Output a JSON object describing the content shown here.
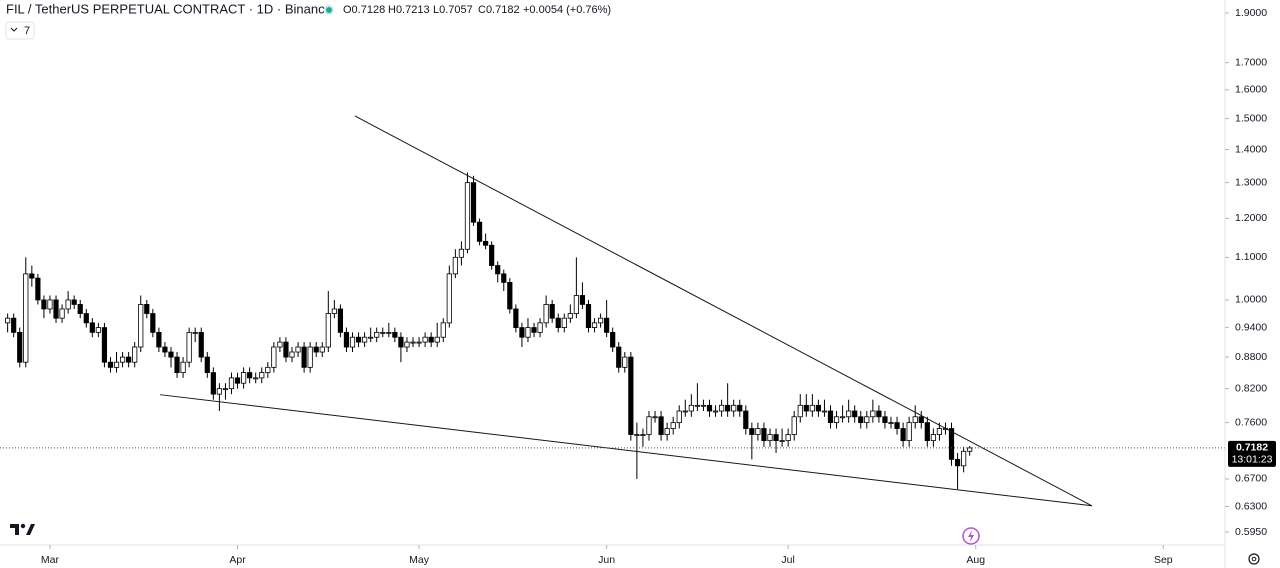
{
  "chart_data": {
    "type": "candlestick",
    "title": "FIL / TetherUS PERPETUAL CONTRACT · 1D · Binance",
    "header_values": [
      "O0.7128",
      "H0.7213",
      "L0.7057",
      "C0.7182",
      "+0.0054 (+0.76%)"
    ],
    "indicator_count": "7",
    "countdown": "13:01:23",
    "last_price": {
      "value": 0.7182,
      "label": "0.7182"
    },
    "log_scale": true,
    "grid": false,
    "up_color": "#ffffff",
    "down_color": "#000000",
    "wick_color": "#000000",
    "xlim": [
      -1.26,
      201.2
    ],
    "xticks": [
      {
        "value": 7,
        "label": "Mar"
      },
      {
        "value": 38,
        "label": "Apr"
      },
      {
        "value": 68,
        "label": "May"
      },
      {
        "value": 99,
        "label": "Jun"
      },
      {
        "value": 129,
        "label": "Jul"
      },
      {
        "value": 160,
        "label": "Aug"
      },
      {
        "value": 191,
        "label": "Sep"
      }
    ],
    "ylim": [
      0.578,
      1.956
    ],
    "yticks": [
      {
        "value": 1.9,
        "label": "1.9000"
      },
      {
        "value": 1.7,
        "label": "1.7000"
      },
      {
        "value": 1.6,
        "label": "1.6000"
      },
      {
        "value": 1.5,
        "label": "1.5000"
      },
      {
        "value": 1.4,
        "label": "1.4000"
      },
      {
        "value": 1.3,
        "label": "1.3000"
      },
      {
        "value": 1.2,
        "label": "1.2000"
      },
      {
        "value": 1.1,
        "label": "1.1000"
      },
      {
        "value": 1.0,
        "label": "1.0000"
      },
      {
        "value": 0.94,
        "label": "0.9400"
      },
      {
        "value": 0.88,
        "label": "0.8800"
      },
      {
        "value": 0.82,
        "label": "0.8200"
      },
      {
        "value": 0.76,
        "label": "0.7600"
      },
      {
        "value": 0.67,
        "label": "0.6700"
      },
      {
        "value": 0.63,
        "label": "0.6300"
      },
      {
        "value": 0.595,
        "label": "0.5950"
      }
    ],
    "trendlines": [
      {
        "x": [
          57.4,
          179.2
        ],
        "y": [
          1.509,
          0.631
        ]
      },
      {
        "x": [
          25.2,
          179.2
        ],
        "y": [
          0.809,
          0.631
        ]
      }
    ],
    "ohlc": [
      [
        0.95,
        0.97,
        0.93,
        0.96
      ],
      [
        0.96,
        0.97,
        0.92,
        0.93
      ],
      [
        0.93,
        0.94,
        0.86,
        0.87
      ],
      [
        0.87,
        1.1,
        0.86,
        1.06
      ],
      [
        1.06,
        1.08,
        1.03,
        1.05
      ],
      [
        1.05,
        1.06,
        0.99,
        1.0
      ],
      [
        1.0,
        1.01,
        0.96,
        0.98
      ],
      [
        0.98,
        1.01,
        0.97,
        1.0
      ],
      [
        1.0,
        1.01,
        0.95,
        0.96
      ],
      [
        0.96,
        0.99,
        0.95,
        0.98
      ],
      [
        0.98,
        1.02,
        0.97,
        1.0
      ],
      [
        1.0,
        1.01,
        0.98,
        0.99
      ],
      [
        0.99,
        1.0,
        0.96,
        0.97
      ],
      [
        0.97,
        0.98,
        0.94,
        0.95
      ],
      [
        0.95,
        0.96,
        0.92,
        0.93
      ],
      [
        0.93,
        0.95,
        0.92,
        0.94
      ],
      [
        0.94,
        0.95,
        0.86,
        0.87
      ],
      [
        0.87,
        0.88,
        0.85,
        0.86
      ],
      [
        0.86,
        0.89,
        0.85,
        0.87
      ],
      [
        0.87,
        0.89,
        0.86,
        0.88
      ],
      [
        0.88,
        0.89,
        0.86,
        0.87
      ],
      [
        0.87,
        0.91,
        0.86,
        0.9
      ],
      [
        0.9,
        1.01,
        0.89,
        0.99
      ],
      [
        0.99,
        1.0,
        0.96,
        0.97
      ],
      [
        0.97,
        0.98,
        0.92,
        0.93
      ],
      [
        0.93,
        0.94,
        0.89,
        0.9
      ],
      [
        0.9,
        0.91,
        0.88,
        0.89
      ],
      [
        0.89,
        0.9,
        0.86,
        0.88
      ],
      [
        0.88,
        0.89,
        0.84,
        0.85
      ],
      [
        0.85,
        0.88,
        0.84,
        0.87
      ],
      [
        0.87,
        0.94,
        0.86,
        0.93
      ],
      [
        0.93,
        0.94,
        0.91,
        0.93
      ],
      [
        0.93,
        0.94,
        0.87,
        0.88
      ],
      [
        0.88,
        0.89,
        0.84,
        0.85
      ],
      [
        0.85,
        0.86,
        0.8,
        0.81
      ],
      [
        0.81,
        0.83,
        0.78,
        0.82
      ],
      [
        0.82,
        0.83,
        0.8,
        0.82
      ],
      [
        0.82,
        0.85,
        0.81,
        0.84
      ],
      [
        0.84,
        0.85,
        0.82,
        0.83
      ],
      [
        0.83,
        0.86,
        0.82,
        0.85
      ],
      [
        0.85,
        0.86,
        0.83,
        0.84
      ],
      [
        0.84,
        0.85,
        0.83,
        0.84
      ],
      [
        0.84,
        0.86,
        0.83,
        0.85
      ],
      [
        0.85,
        0.87,
        0.84,
        0.86
      ],
      [
        0.86,
        0.91,
        0.85,
        0.9
      ],
      [
        0.9,
        0.92,
        0.89,
        0.91
      ],
      [
        0.91,
        0.92,
        0.87,
        0.88
      ],
      [
        0.88,
        0.9,
        0.87,
        0.89
      ],
      [
        0.89,
        0.91,
        0.88,
        0.9
      ],
      [
        0.9,
        0.91,
        0.85,
        0.86
      ],
      [
        0.86,
        0.91,
        0.85,
        0.9
      ],
      [
        0.9,
        0.91,
        0.88,
        0.89
      ],
      [
        0.89,
        0.91,
        0.88,
        0.9
      ],
      [
        0.9,
        1.02,
        0.89,
        0.97
      ],
      [
        0.97,
        1.0,
        0.96,
        0.98
      ],
      [
        0.98,
        0.99,
        0.92,
        0.93
      ],
      [
        0.93,
        0.94,
        0.89,
        0.9
      ],
      [
        0.9,
        0.93,
        0.89,
        0.92
      ],
      [
        0.92,
        0.93,
        0.9,
        0.91
      ],
      [
        0.91,
        0.93,
        0.9,
        0.92
      ],
      [
        0.92,
        0.94,
        0.91,
        0.92
      ],
      [
        0.92,
        0.94,
        0.91,
        0.93
      ],
      [
        0.93,
        0.94,
        0.92,
        0.93
      ],
      [
        0.93,
        0.95,
        0.92,
        0.93
      ],
      [
        0.93,
        0.94,
        0.91,
        0.92
      ],
      [
        0.92,
        0.93,
        0.87,
        0.9
      ],
      [
        0.9,
        0.92,
        0.89,
        0.91
      ],
      [
        0.91,
        0.92,
        0.9,
        0.91
      ],
      [
        0.91,
        0.92,
        0.9,
        0.91
      ],
      [
        0.91,
        0.93,
        0.9,
        0.92
      ],
      [
        0.92,
        0.93,
        0.9,
        0.91
      ],
      [
        0.91,
        0.95,
        0.9,
        0.92
      ],
      [
        0.92,
        0.96,
        0.91,
        0.95
      ],
      [
        0.95,
        1.08,
        0.94,
        1.06
      ],
      [
        1.06,
        1.12,
        1.05,
        1.1
      ],
      [
        1.1,
        1.14,
        1.08,
        1.12
      ],
      [
        1.12,
        1.33,
        1.11,
        1.3
      ],
      [
        1.3,
        1.32,
        1.18,
        1.19
      ],
      [
        1.19,
        1.2,
        1.13,
        1.14
      ],
      [
        1.14,
        1.16,
        1.12,
        1.13
      ],
      [
        1.13,
        1.14,
        1.07,
        1.08
      ],
      [
        1.08,
        1.09,
        1.04,
        1.06
      ],
      [
        1.06,
        1.07,
        1.02,
        1.04
      ],
      [
        1.04,
        1.05,
        0.97,
        0.98
      ],
      [
        0.98,
        0.99,
        0.93,
        0.94
      ],
      [
        0.94,
        0.95,
        0.9,
        0.92
      ],
      [
        0.92,
        0.96,
        0.91,
        0.94
      ],
      [
        0.94,
        0.95,
        0.92,
        0.93
      ],
      [
        0.93,
        0.96,
        0.92,
        0.95
      ],
      [
        0.95,
        1.01,
        0.94,
        0.99
      ],
      [
        0.99,
        1.0,
        0.95,
        0.96
      ],
      [
        0.96,
        0.97,
        0.93,
        0.94
      ],
      [
        0.94,
        0.97,
        0.93,
        0.96
      ],
      [
        0.96,
        0.99,
        0.95,
        0.97
      ],
      [
        0.97,
        1.1,
        0.96,
        1.01
      ],
      [
        1.01,
        1.04,
        0.98,
        0.99
      ],
      [
        0.99,
        1.0,
        0.93,
        0.94
      ],
      [
        0.94,
        0.96,
        0.93,
        0.95
      ],
      [
        0.95,
        0.97,
        0.94,
        0.96
      ],
      [
        0.96,
        1.0,
        0.92,
        0.93
      ],
      [
        0.93,
        0.94,
        0.89,
        0.9
      ],
      [
        0.9,
        0.91,
        0.85,
        0.86
      ],
      [
        0.86,
        0.89,
        0.85,
        0.88
      ],
      [
        0.88,
        0.89,
        0.73,
        0.74
      ],
      [
        0.74,
        0.76,
        0.67,
        0.74
      ],
      [
        0.74,
        0.75,
        0.72,
        0.74
      ],
      [
        0.74,
        0.78,
        0.73,
        0.77
      ],
      [
        0.77,
        0.78,
        0.76,
        0.77
      ],
      [
        0.77,
        0.78,
        0.73,
        0.74
      ],
      [
        0.74,
        0.76,
        0.73,
        0.75
      ],
      [
        0.75,
        0.77,
        0.74,
        0.76
      ],
      [
        0.76,
        0.79,
        0.75,
        0.78
      ],
      [
        0.78,
        0.8,
        0.77,
        0.78
      ],
      [
        0.78,
        0.81,
        0.77,
        0.79
      ],
      [
        0.79,
        0.83,
        0.78,
        0.79
      ],
      [
        0.79,
        0.8,
        0.78,
        0.79
      ],
      [
        0.79,
        0.8,
        0.77,
        0.78
      ],
      [
        0.78,
        0.79,
        0.77,
        0.78
      ],
      [
        0.78,
        0.8,
        0.77,
        0.79
      ],
      [
        0.79,
        0.83,
        0.77,
        0.78
      ],
      [
        0.78,
        0.8,
        0.77,
        0.79
      ],
      [
        0.79,
        0.8,
        0.77,
        0.78
      ],
      [
        0.78,
        0.79,
        0.74,
        0.75
      ],
      [
        0.75,
        0.76,
        0.7,
        0.74
      ],
      [
        0.74,
        0.76,
        0.73,
        0.75
      ],
      [
        0.75,
        0.76,
        0.72,
        0.73
      ],
      [
        0.73,
        0.75,
        0.72,
        0.74
      ],
      [
        0.74,
        0.75,
        0.71,
        0.73
      ],
      [
        0.73,
        0.75,
        0.72,
        0.73
      ],
      [
        0.73,
        0.75,
        0.72,
        0.74
      ],
      [
        0.74,
        0.78,
        0.73,
        0.77
      ],
      [
        0.77,
        0.81,
        0.76,
        0.79
      ],
      [
        0.79,
        0.81,
        0.77,
        0.78
      ],
      [
        0.78,
        0.81,
        0.77,
        0.79
      ],
      [
        0.79,
        0.8,
        0.77,
        0.78
      ],
      [
        0.78,
        0.8,
        0.77,
        0.78
      ],
      [
        0.78,
        0.79,
        0.75,
        0.76
      ],
      [
        0.76,
        0.78,
        0.75,
        0.77
      ],
      [
        0.77,
        0.79,
        0.76,
        0.77
      ],
      [
        0.77,
        0.8,
        0.76,
        0.78
      ],
      [
        0.78,
        0.79,
        0.76,
        0.77
      ],
      [
        0.77,
        0.78,
        0.75,
        0.76
      ],
      [
        0.76,
        0.78,
        0.75,
        0.77
      ],
      [
        0.77,
        0.8,
        0.76,
        0.78
      ],
      [
        0.78,
        0.79,
        0.76,
        0.77
      ],
      [
        0.77,
        0.78,
        0.75,
        0.76
      ],
      [
        0.76,
        0.77,
        0.75,
        0.76
      ],
      [
        0.76,
        0.77,
        0.74,
        0.75
      ],
      [
        0.75,
        0.76,
        0.72,
        0.73
      ],
      [
        0.73,
        0.77,
        0.72,
        0.76
      ],
      [
        0.76,
        0.79,
        0.75,
        0.77
      ],
      [
        0.77,
        0.78,
        0.75,
        0.76
      ],
      [
        0.76,
        0.77,
        0.72,
        0.73
      ],
      [
        0.73,
        0.75,
        0.72,
        0.74
      ],
      [
        0.74,
        0.76,
        0.73,
        0.75
      ],
      [
        0.75,
        0.76,
        0.74,
        0.75
      ],
      [
        0.75,
        0.76,
        0.69,
        0.7
      ],
      [
        0.7,
        0.71,
        0.655,
        0.69
      ],
      [
        0.69,
        0.72,
        0.68,
        0.7128
      ],
      [
        0.7128,
        0.7213,
        0.7057,
        0.7182
      ]
    ]
  }
}
